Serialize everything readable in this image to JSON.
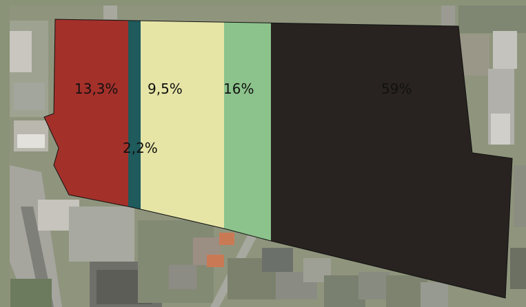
{
  "map": {
    "layer": "aerial-photo",
    "colors": {
      "c1": "#a4302a",
      "c2": "#1f5a5c",
      "c3": "#e6e5a6",
      "c4": "#8cc38c",
      "c5": "#282320",
      "outline": "#111111"
    },
    "segments": [
      {
        "label": "13,3%",
        "value": 13.3,
        "color_key": "c1"
      },
      {
        "label": "2,2%",
        "value": 2.2,
        "color_key": "c2"
      },
      {
        "label": "9,5%",
        "value": 9.5,
        "color_key": "c3"
      },
      {
        "label": "16%",
        "value": 16,
        "color_key": "c4"
      },
      {
        "label": "59%",
        "value": 59,
        "color_key": "c5"
      }
    ]
  }
}
